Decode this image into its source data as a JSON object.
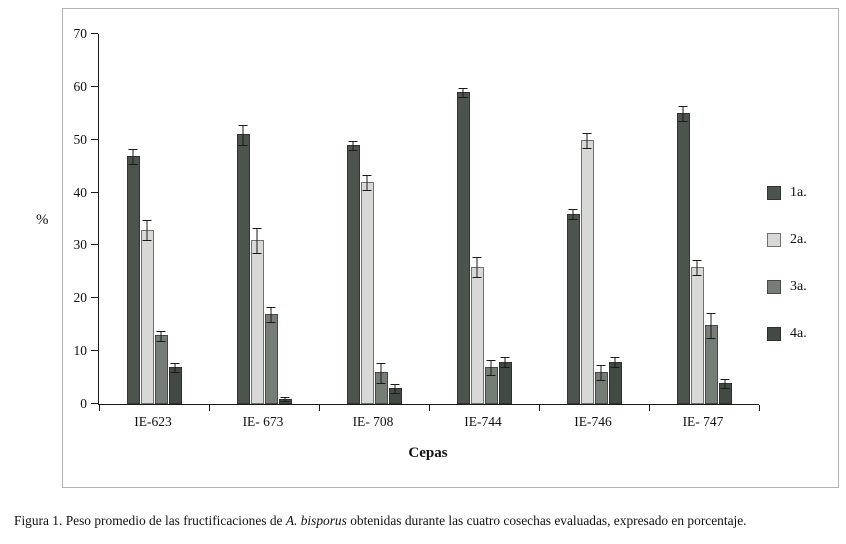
{
  "chart_data": {
    "type": "bar",
    "title": "",
    "xlabel": "Cepas",
    "ylabel": "%",
    "ylim": [
      0,
      70
    ],
    "yticks": [
      0,
      10,
      20,
      30,
      40,
      50,
      60,
      70
    ],
    "grid": false,
    "legend_position": "right",
    "error_bars": true,
    "categories": [
      "IE-623",
      "IE- 673",
      "IE- 708",
      "IE-744",
      "IE-746",
      "IE- 747"
    ],
    "series": [
      {
        "name": "1a.",
        "color": "#4d544e",
        "values": [
          47,
          51,
          49,
          59,
          36,
          55
        ],
        "errors": [
          1.5,
          2,
          1,
          1,
          1,
          1.5
        ]
      },
      {
        "name": "2a.",
        "color": "#d8d8d6",
        "values": [
          33,
          31,
          42,
          26,
          50,
          26
        ],
        "errors": [
          2,
          2.5,
          1.5,
          2,
          1.5,
          1.5
        ]
      },
      {
        "name": "3a.",
        "color": "#757d76",
        "values": [
          13,
          17,
          6,
          7,
          6,
          15
        ],
        "errors": [
          1,
          1.5,
          2,
          1.5,
          1.5,
          2.5
        ]
      },
      {
        "name": "4a.",
        "color": "#434a44",
        "values": [
          7,
          1,
          3,
          8,
          8,
          4
        ],
        "errors": [
          1,
          0.5,
          1,
          1,
          1,
          1
        ]
      }
    ]
  },
  "caption": {
    "part1": "Figura 1. Peso promedio de las fructificaciones de ",
    "italic": "A. bisporus",
    "part2": " obtenidas durante las cuatro cosechas evaluadas, expresado en porcentaje."
  }
}
